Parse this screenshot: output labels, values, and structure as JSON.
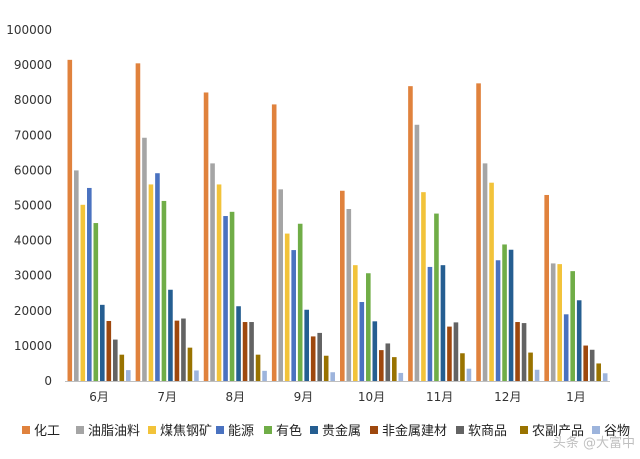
{
  "chart_data": {
    "type": "bar",
    "categories": [
      "6月",
      "7月",
      "8月",
      "9月",
      "10月",
      "11月",
      "12月",
      "1月"
    ],
    "ylim": [
      0,
      100000
    ],
    "yticks": [
      "0",
      "10000",
      "20000",
      "30000",
      "40000",
      "50000",
      "60000",
      "70000",
      "80000",
      "90000",
      "100000"
    ],
    "grid": false,
    "legend_position": "bottom",
    "series": [
      {
        "name": "化工",
        "color": "#E0823D",
        "values": [
          91500,
          90500,
          82200,
          78800,
          54200,
          84000,
          84800,
          53000
        ]
      },
      {
        "name": "油脂油料",
        "color": "#A5A5A5",
        "values": [
          60000,
          69300,
          62000,
          54600,
          49000,
          73000,
          62000,
          33500
        ]
      },
      {
        "name": "煤焦钢矿",
        "color": "#F2C33A",
        "values": [
          50200,
          56000,
          56000,
          42000,
          33000,
          53800,
          56500,
          33300
        ]
      },
      {
        "name": "能源",
        "color": "#4A72C0",
        "values": [
          55000,
          59200,
          47000,
          37300,
          22500,
          32500,
          34400,
          19000
        ]
      },
      {
        "name": "有色",
        "color": "#70AD47",
        "values": [
          45000,
          51300,
          48200,
          44800,
          30700,
          47700,
          38900,
          31300
        ]
      },
      {
        "name": "贵金属",
        "color": "#255E91",
        "values": [
          21700,
          26000,
          21300,
          20300,
          17000,
          33000,
          37400,
          23000
        ]
      },
      {
        "name": "非金属建材",
        "color": "#9E480E",
        "values": [
          17100,
          17200,
          16800,
          12700,
          8800,
          15500,
          16800,
          10100
        ]
      },
      {
        "name": "软商品",
        "color": "#636363",
        "values": [
          11800,
          17800,
          16800,
          13700,
          10700,
          16700,
          16500,
          8900
        ]
      },
      {
        "name": "农副产品",
        "color": "#997300",
        "values": [
          7500,
          9500,
          7500,
          7200,
          6800,
          7900,
          8100,
          5000
        ]
      },
      {
        "name": "谷物",
        "color": "#9DB4DC",
        "values": [
          3100,
          3000,
          2900,
          2500,
          2300,
          3500,
          3200,
          2200
        ]
      }
    ]
  },
  "legend_labels": [
    "化工",
    "油脂油料",
    "煤焦钢矿",
    "能源",
    "有色",
    "贵金属",
    "非金属建材",
    "软商品",
    "农副产品",
    "谷物"
  ],
  "watermark": "头条 @大富中"
}
